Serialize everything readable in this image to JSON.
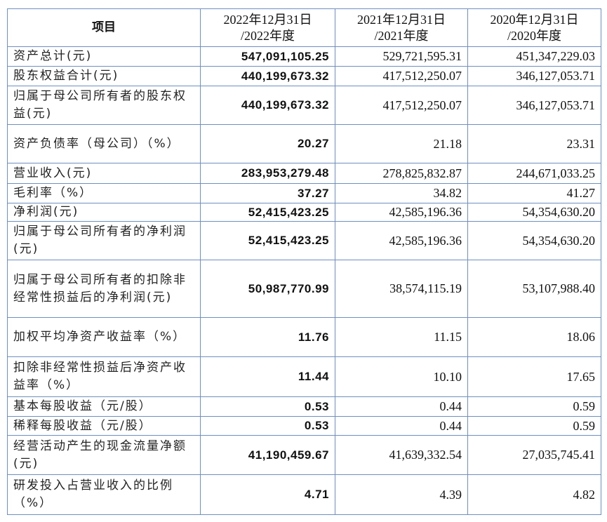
{
  "table": {
    "headers": [
      "项目",
      "2022年12月31日\n/2022年度",
      "2021年12月31日\n/2021年度",
      "2020年12月31日\n/2020年度"
    ],
    "header_lines": [
      [
        "项目"
      ],
      [
        "2022年12月31日",
        "/2022年度"
      ],
      [
        "2021年12月31日",
        "/2021年度"
      ],
      [
        "2020年12月31日",
        "/2020年度"
      ]
    ],
    "rows": [
      {
        "label": "资产总计(元)",
        "v2022": "547,091,105.25",
        "v2021": "529,721,595.31",
        "v2020": "451,347,229.03"
      },
      {
        "label": "股东权益合计(元)",
        "v2022": "440,199,673.32",
        "v2021": "417,512,250.07",
        "v2020": "346,127,053.71"
      },
      {
        "label": "归属于母公司所有者的股东权益(元)",
        "v2022": "440,199,673.32",
        "v2021": "417,512,250.07",
        "v2020": "346,127,053.71"
      },
      {
        "label": "资产负债率（母公司）（%）",
        "v2022": "20.27",
        "v2021": "21.18",
        "v2020": "23.31"
      },
      {
        "label": "营业收入(元)",
        "v2022": "283,953,279.48",
        "v2021": "278,825,832.87",
        "v2020": "244,671,033.25"
      },
      {
        "label": "毛利率（%）",
        "v2022": "37.27",
        "v2021": "34.82",
        "v2020": "41.27"
      },
      {
        "label": "净利润(元)",
        "v2022": "52,415,423.25",
        "v2021": "42,585,196.36",
        "v2020": "54,354,630.20"
      },
      {
        "label": "归属于母公司所有者的净利润(元)",
        "v2022": "52,415,423.25",
        "v2021": "42,585,196.36",
        "v2020": "54,354,630.20"
      },
      {
        "label": "归属于母公司所有者的扣除非经常性损益后的净利润(元)",
        "v2022": "50,987,770.99",
        "v2021": "38,574,115.19",
        "v2020": "53,107,988.40"
      },
      {
        "label": "加权平均净资产收益率（%）",
        "v2022": "11.76",
        "v2021": "11.15",
        "v2020": "18.06"
      },
      {
        "label": "扣除非经常性损益后净资产收益率（%）",
        "v2022": "11.44",
        "v2021": "10.10",
        "v2020": "17.65"
      },
      {
        "label": "基本每股收益（元/股）",
        "v2022": "0.53",
        "v2021": "0.44",
        "v2020": "0.59"
      },
      {
        "label": "稀释每股收益（元/股）",
        "v2022": "0.53",
        "v2021": "0.44",
        "v2020": "0.59"
      },
      {
        "label": "经营活动产生的现金流量净额(元)",
        "v2022": "41,190,459.67",
        "v2021": "41,639,332.54",
        "v2020": "27,035,745.41"
      },
      {
        "label": "研发投入占营业收入的比例（%）",
        "v2022": "4.71",
        "v2021": "4.39",
        "v2020": "4.82"
      }
    ]
  },
  "style": {
    "border_color": "#6f8fbf",
    "text_color": "#111111"
  }
}
